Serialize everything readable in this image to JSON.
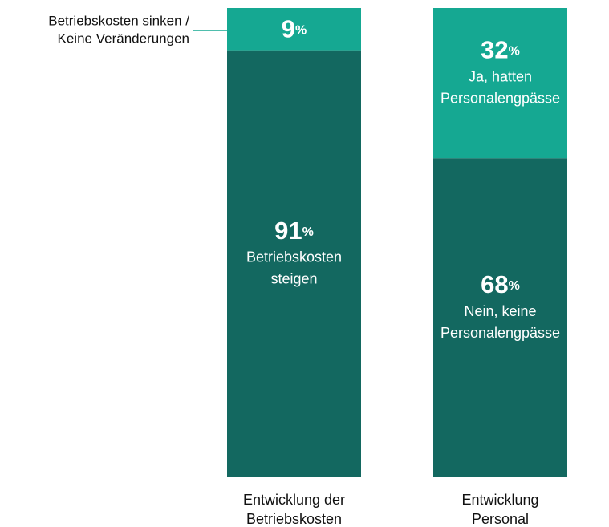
{
  "chart_data": {
    "type": "stacked_bar",
    "unit": "%",
    "ylim": [
      0,
      100
    ],
    "bars": [
      {
        "category": [
          "Entwicklung der",
          "Betriebskosten"
        ],
        "segments": [
          {
            "value": 91,
            "label": [
              "Betriebskosten",
              "steigen"
            ],
            "color": "#136860"
          },
          {
            "value": 9,
            "label": [
              "Betriebskosten sinken /",
              "Keine Veränderungen"
            ],
            "label_position": "left",
            "color": "#15a892"
          }
        ]
      },
      {
        "category": [
          "Entwicklung",
          "Personal"
        ],
        "segments": [
          {
            "value": 68,
            "label": [
              "Nein, keine",
              "Personalengpässe"
            ],
            "color": "#136860"
          },
          {
            "value": 32,
            "label": [
              "Ja, hatten",
              "Personalengpässe"
            ],
            "color": "#15a892"
          }
        ]
      }
    ]
  }
}
